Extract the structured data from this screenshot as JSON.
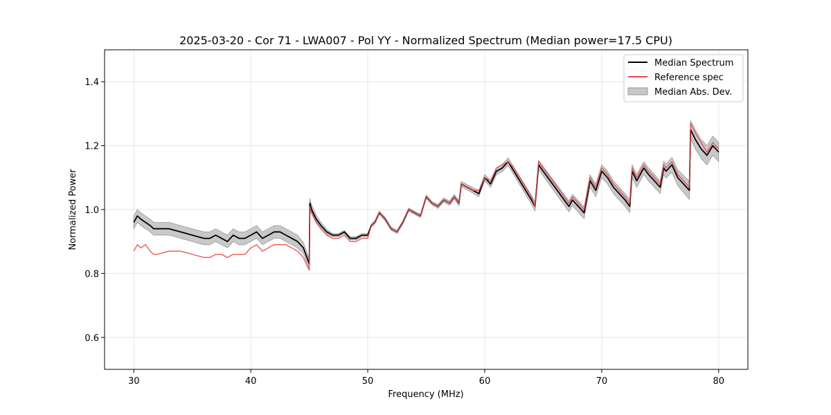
{
  "chart_data": {
    "type": "line",
    "title": "2025-03-20 - Cor 71 - LWA007 - Pol YY - Normalized Spectrum (Median power=17.5 CPU)",
    "xlabel": "Frequency (MHz)",
    "ylabel": "Normalized Power",
    "xlim": [
      27.5,
      82.5
    ],
    "ylim": [
      0.5,
      1.5
    ],
    "x_ticks": [
      30,
      40,
      50,
      60,
      70,
      80
    ],
    "y_ticks": [
      0.6,
      0.8,
      1.0,
      1.2,
      1.4
    ],
    "x_tick_labels": [
      "30",
      "40",
      "50",
      "60",
      "70",
      "80"
    ],
    "y_tick_labels": [
      "0.6",
      "0.8",
      "1.0",
      "1.2",
      "1.4"
    ],
    "grid": true,
    "legend_position": "top-right",
    "legend": [
      "Median Spectrum",
      "Reference spec",
      "Median Abs. Dev."
    ],
    "colors": {
      "median": "#000000",
      "reference": "#e8474a",
      "mad_fill": "#c8c8c8",
      "mad_edge": "#999999",
      "overlap": "#8b1a1a",
      "grid": "#e6e6e6"
    },
    "series": [
      {
        "name": "Median Spectrum",
        "x": [
          30.0,
          30.3,
          30.6,
          31.0,
          31.4,
          31.7,
          32.0,
          33.0,
          34.0,
          35.0,
          36.0,
          36.5,
          37.0,
          37.5,
          38.0,
          38.5,
          39.0,
          39.5,
          40.0,
          40.5,
          41.0,
          41.5,
          42.0,
          42.5,
          43.0,
          43.5,
          44.0,
          44.5,
          45.0,
          45.05,
          45.2,
          45.6,
          46.0,
          46.5,
          47.0,
          47.5,
          48.0,
          48.5,
          49.0,
          49.5,
          50.0,
          50.3,
          50.6,
          51.0,
          51.5,
          52.0,
          52.5,
          53.0,
          53.5,
          54.0,
          54.5,
          55.0,
          55.5,
          56.0,
          56.5,
          57.0,
          57.4,
          57.8,
          58.0,
          58.5,
          59.0,
          59.5,
          60.0,
          60.5,
          61.0,
          61.5,
          62.0,
          62.5,
          63.0,
          63.5,
          64.0,
          64.3,
          64.6,
          65.0,
          66.0,
          67.0,
          67.2,
          67.5,
          68.0,
          68.5,
          69.0,
          69.5,
          70.0,
          70.5,
          71.0,
          71.5,
          72.0,
          72.4,
          72.6,
          73.0,
          73.3,
          73.6,
          74.0,
          74.5,
          75.0,
          75.3,
          75.5,
          76.0,
          76.5,
          77.0,
          77.5,
          77.6,
          78.0,
          78.5,
          79.0,
          79.5,
          80.0
        ],
        "values": [
          0.96,
          0.98,
          0.97,
          0.96,
          0.95,
          0.94,
          0.94,
          0.94,
          0.93,
          0.92,
          0.91,
          0.91,
          0.92,
          0.91,
          0.9,
          0.92,
          0.91,
          0.91,
          0.92,
          0.93,
          0.91,
          0.92,
          0.93,
          0.93,
          0.92,
          0.91,
          0.9,
          0.88,
          0.83,
          1.02,
          1.0,
          0.97,
          0.95,
          0.93,
          0.92,
          0.92,
          0.93,
          0.91,
          0.91,
          0.92,
          0.92,
          0.95,
          0.96,
          0.99,
          0.97,
          0.94,
          0.93,
          0.96,
          1.0,
          0.99,
          0.98,
          1.04,
          1.02,
          1.01,
          1.03,
          1.02,
          1.04,
          1.02,
          1.08,
          1.07,
          1.06,
          1.05,
          1.1,
          1.08,
          1.12,
          1.13,
          1.15,
          1.12,
          1.09,
          1.06,
          1.03,
          1.01,
          1.14,
          1.12,
          1.07,
          1.02,
          1.01,
          1.03,
          1.01,
          0.99,
          1.09,
          1.06,
          1.12,
          1.1,
          1.07,
          1.05,
          1.03,
          1.01,
          1.12,
          1.09,
          1.11,
          1.13,
          1.11,
          1.09,
          1.07,
          1.13,
          1.12,
          1.14,
          1.1,
          1.08,
          1.06,
          1.25,
          1.22,
          1.19,
          1.17,
          1.2,
          1.18
        ]
      },
      {
        "name": "Reference spec",
        "x": [
          30.0,
          30.3,
          30.6,
          31.0,
          31.4,
          31.7,
          32.0,
          33.0,
          34.0,
          35.0,
          36.0,
          36.5,
          37.0,
          37.5,
          38.0,
          38.5,
          39.0,
          39.5,
          40.0,
          40.5,
          41.0,
          41.5,
          42.0,
          42.5,
          43.0,
          43.5,
          44.0,
          44.5,
          45.0,
          45.05,
          45.2,
          45.6,
          46.0,
          46.5,
          47.0,
          47.5,
          48.0,
          48.5,
          49.0,
          49.5,
          50.0,
          50.3,
          50.6,
          51.0,
          51.5,
          52.0,
          52.5,
          53.0,
          53.5,
          54.0,
          54.5,
          55.0,
          55.5,
          56.0,
          56.5,
          57.0,
          57.4,
          57.8,
          58.0,
          58.5,
          59.0,
          59.5,
          60.0,
          60.5,
          61.0,
          61.5,
          62.0,
          62.5,
          63.0,
          63.5,
          64.0,
          64.3,
          64.6,
          65.0,
          66.0,
          67.0,
          67.2,
          67.5,
          68.0,
          68.5,
          69.0,
          69.5,
          70.0,
          70.5,
          71.0,
          71.5,
          72.0,
          72.4,
          72.6,
          73.0,
          73.3,
          73.6,
          74.0,
          74.5,
          75.0,
          75.3,
          75.5,
          76.0,
          76.5,
          77.0,
          77.5,
          77.6,
          78.0,
          78.5,
          79.0,
          79.5,
          80.0
        ],
        "values": [
          0.87,
          0.89,
          0.88,
          0.89,
          0.87,
          0.86,
          0.86,
          0.87,
          0.87,
          0.86,
          0.85,
          0.85,
          0.86,
          0.86,
          0.85,
          0.86,
          0.86,
          0.86,
          0.88,
          0.89,
          0.87,
          0.88,
          0.89,
          0.89,
          0.89,
          0.88,
          0.87,
          0.85,
          0.81,
          1.01,
          0.99,
          0.96,
          0.94,
          0.92,
          0.91,
          0.91,
          0.92,
          0.9,
          0.9,
          0.91,
          0.91,
          0.95,
          0.96,
          0.99,
          0.97,
          0.94,
          0.93,
          0.96,
          1.0,
          0.99,
          0.98,
          1.04,
          1.02,
          1.01,
          1.03,
          1.02,
          1.04,
          1.02,
          1.08,
          1.07,
          1.06,
          1.06,
          1.1,
          1.09,
          1.13,
          1.14,
          1.15,
          1.13,
          1.1,
          1.07,
          1.04,
          1.01,
          1.15,
          1.13,
          1.08,
          1.03,
          1.02,
          1.04,
          1.02,
          1.0,
          1.1,
          1.07,
          1.13,
          1.11,
          1.08,
          1.06,
          1.04,
          1.02,
          1.13,
          1.1,
          1.12,
          1.14,
          1.12,
          1.1,
          1.08,
          1.14,
          1.13,
          1.15,
          1.11,
          1.09,
          1.07,
          1.27,
          1.24,
          1.21,
          1.18,
          1.21,
          1.19
        ]
      },
      {
        "name": "Median Abs. Dev.",
        "x": [
          30.0,
          31.0,
          32.0,
          33.0,
          34.0,
          35.0,
          36.0,
          37.0,
          38.0,
          39.0,
          40.0,
          41.0,
          42.0,
          43.0,
          44.0,
          45.0,
          46.0,
          47.0,
          48.0,
          50.0,
          55.0,
          60.0,
          65.0,
          70.0,
          75.0,
          78.0,
          80.0
        ],
        "values": [
          0.02,
          0.02,
          0.02,
          0.02,
          0.02,
          0.02,
          0.02,
          0.02,
          0.02,
          0.02,
          0.02,
          0.02,
          0.02,
          0.02,
          0.02,
          0.015,
          0.01,
          0.005,
          0.005,
          0.005,
          0.005,
          0.01,
          0.015,
          0.02,
          0.02,
          0.03,
          0.03
        ]
      }
    ]
  }
}
